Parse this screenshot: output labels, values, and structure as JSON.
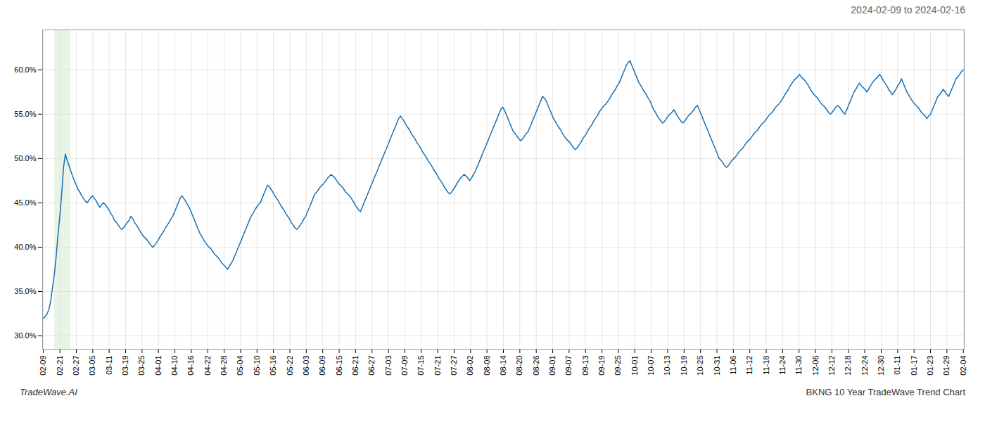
{
  "chart_data": {
    "type": "line",
    "title": "2024-02-09 to 2024-02-16",
    "annotations": [
      "TradeWave.AI",
      "BKNG 10 Year TradeWave Trend Chart"
    ],
    "color": "#1a6faf",
    "span": {
      "x": [
        6,
        15
      ],
      "color": "#d4e8d0"
    },
    "grid": true,
    "xlim": [
      -0.5,
      505.5
    ],
    "xticks": [
      {
        "value": 0,
        "label": "02-09"
      },
      {
        "value": 9.017857,
        "label": "02-21"
      },
      {
        "value": 18.035714,
        "label": "02-27"
      },
      {
        "value": 27.053571,
        "label": "03-05"
      },
      {
        "value": 36.071429,
        "label": "03-11"
      },
      {
        "value": 45.089286,
        "label": "03-19"
      },
      {
        "value": 54.107143,
        "label": "03-25"
      },
      {
        "value": 63.125,
        "label": "04-01"
      },
      {
        "value": 72.142857,
        "label": "04-10"
      },
      {
        "value": 81.160714,
        "label": "04-16"
      },
      {
        "value": 90.178571,
        "label": "04-22"
      },
      {
        "value": 99.196429,
        "label": "04-28"
      },
      {
        "value": 108.214286,
        "label": "05-04"
      },
      {
        "value": 117.232143,
        "label": "05-10"
      },
      {
        "value": 126.25,
        "label": "05-16"
      },
      {
        "value": 135.267857,
        "label": "05-22"
      },
      {
        "value": 144.285714,
        "label": "06-03"
      },
      {
        "value": 153.303571,
        "label": "06-09"
      },
      {
        "value": 162.321429,
        "label": "06-15"
      },
      {
        "value": 171.339286,
        "label": "06-21"
      },
      {
        "value": 180.357143,
        "label": "06-27"
      },
      {
        "value": 189.375,
        "label": "07-03"
      },
      {
        "value": 198.392857,
        "label": "07-09"
      },
      {
        "value": 207.410714,
        "label": "07-15"
      },
      {
        "value": 216.428571,
        "label": "07-21"
      },
      {
        "value": 225.446429,
        "label": "07-27"
      },
      {
        "value": 234.464286,
        "label": "08-02"
      },
      {
        "value": 243.482143,
        "label": "08-08"
      },
      {
        "value": 252.5,
        "label": "08-14"
      },
      {
        "value": 261.517857,
        "label": "08-20"
      },
      {
        "value": 270.535714,
        "label": "08-26"
      },
      {
        "value": 279.553571,
        "label": "09-01"
      },
      {
        "value": 288.571429,
        "label": "09-07"
      },
      {
        "value": 297.589286,
        "label": "09-13"
      },
      {
        "value": 306.607143,
        "label": "09-19"
      },
      {
        "value": 315.625,
        "label": "09-25"
      },
      {
        "value": 324.642857,
        "label": "10-01"
      },
      {
        "value": 333.660714,
        "label": "10-07"
      },
      {
        "value": 342.678571,
        "label": "10-13"
      },
      {
        "value": 351.696429,
        "label": "10-19"
      },
      {
        "value": 360.714286,
        "label": "10-25"
      },
      {
        "value": 369.732143,
        "label": "10-31"
      },
      {
        "value": 378.75,
        "label": "11-06"
      },
      {
        "value": 387.767857,
        "label": "11-12"
      },
      {
        "value": 396.785714,
        "label": "11-18"
      },
      {
        "value": 405.803571,
        "label": "11-24"
      },
      {
        "value": 414.821429,
        "label": "11-30"
      },
      {
        "value": 423.839286,
        "label": "12-06"
      },
      {
        "value": 432.857143,
        "label": "12-12"
      },
      {
        "value": 441.875,
        "label": "12-18"
      },
      {
        "value": 450.892857,
        "label": "12-24"
      },
      {
        "value": 459.910714,
        "label": "12-30"
      },
      {
        "value": 468.928571,
        "label": "01-11"
      },
      {
        "value": 477.946429,
        "label": "01-17"
      },
      {
        "value": 486.964286,
        "label": "01-23"
      },
      {
        "value": 495.982143,
        "label": "01-29"
      },
      {
        "value": 505,
        "label": "02-04"
      }
    ],
    "ylim": [
      0.285,
      0.645
    ],
    "yticks": [
      {
        "value": 0.3,
        "label": "30.0%"
      },
      {
        "value": 0.35,
        "label": "35.0%"
      },
      {
        "value": 0.4,
        "label": "40.0%"
      },
      {
        "value": 0.45,
        "label": "45.0%"
      },
      {
        "value": 0.5,
        "label": "50.0%"
      },
      {
        "value": 0.55,
        "label": "55.0%"
      },
      {
        "value": 0.6,
        "label": "60.0%"
      }
    ],
    "values": [
      0.32,
      0.322,
      0.325,
      0.33,
      0.34,
      0.355,
      0.37,
      0.39,
      0.415,
      0.435,
      0.46,
      0.49,
      0.505,
      0.498,
      0.492,
      0.486,
      0.48,
      0.475,
      0.47,
      0.465,
      0.462,
      0.458,
      0.455,
      0.452,
      0.45,
      0.453,
      0.456,
      0.458,
      0.455,
      0.452,
      0.448,
      0.445,
      0.448,
      0.45,
      0.448,
      0.445,
      0.442,
      0.438,
      0.435,
      0.43,
      0.428,
      0.425,
      0.422,
      0.42,
      0.422,
      0.425,
      0.428,
      0.43,
      0.435,
      0.432,
      0.428,
      0.425,
      0.422,
      0.418,
      0.415,
      0.412,
      0.41,
      0.408,
      0.405,
      0.402,
      0.4,
      0.402,
      0.405,
      0.408,
      0.412,
      0.415,
      0.418,
      0.422,
      0.425,
      0.428,
      0.432,
      0.435,
      0.44,
      0.445,
      0.45,
      0.455,
      0.458,
      0.455,
      0.452,
      0.448,
      0.445,
      0.44,
      0.435,
      0.43,
      0.425,
      0.42,
      0.415,
      0.412,
      0.408,
      0.405,
      0.402,
      0.4,
      0.398,
      0.395,
      0.392,
      0.39,
      0.388,
      0.385,
      0.382,
      0.38,
      0.378,
      0.375,
      0.378,
      0.382,
      0.385,
      0.39,
      0.395,
      0.4,
      0.405,
      0.41,
      0.415,
      0.42,
      0.425,
      0.43,
      0.435,
      0.438,
      0.442,
      0.445,
      0.448,
      0.45,
      0.455,
      0.46,
      0.465,
      0.47,
      0.468,
      0.465,
      0.462,
      0.458,
      0.455,
      0.452,
      0.448,
      0.445,
      0.442,
      0.438,
      0.435,
      0.432,
      0.428,
      0.425,
      0.422,
      0.42,
      0.422,
      0.425,
      0.428,
      0.432,
      0.435,
      0.44,
      0.445,
      0.45,
      0.455,
      0.46,
      0.462,
      0.465,
      0.468,
      0.47,
      0.472,
      0.475,
      0.478,
      0.48,
      0.482,
      0.48,
      0.478,
      0.475,
      0.472,
      0.47,
      0.468,
      0.465,
      0.462,
      0.46,
      0.458,
      0.455,
      0.452,
      0.448,
      0.445,
      0.442,
      0.44,
      0.445,
      0.45,
      0.455,
      0.46,
      0.465,
      0.47,
      0.475,
      0.48,
      0.485,
      0.49,
      0.495,
      0.5,
      0.505,
      0.51,
      0.515,
      0.52,
      0.525,
      0.53,
      0.535,
      0.54,
      0.545,
      0.548,
      0.545,
      0.542,
      0.538,
      0.535,
      0.532,
      0.528,
      0.525,
      0.522,
      0.518,
      0.515,
      0.512,
      0.508,
      0.505,
      0.502,
      0.498,
      0.495,
      0.492,
      0.488,
      0.485,
      0.482,
      0.478,
      0.475,
      0.472,
      0.468,
      0.465,
      0.462,
      0.46,
      0.462,
      0.465,
      0.468,
      0.472,
      0.475,
      0.478,
      0.48,
      0.482,
      0.48,
      0.478,
      0.475,
      0.478,
      0.482,
      0.485,
      0.49,
      0.495,
      0.5,
      0.505,
      0.51,
      0.515,
      0.52,
      0.525,
      0.53,
      0.535,
      0.54,
      0.545,
      0.55,
      0.555,
      0.558,
      0.555,
      0.55,
      0.545,
      0.54,
      0.535,
      0.53,
      0.528,
      0.525,
      0.522,
      0.52,
      0.522,
      0.525,
      0.528,
      0.53,
      0.535,
      0.54,
      0.545,
      0.55,
      0.555,
      0.56,
      0.565,
      0.57,
      0.568,
      0.565,
      0.56,
      0.555,
      0.55,
      0.545,
      0.542,
      0.538,
      0.535,
      0.532,
      0.528,
      0.525,
      0.522,
      0.52,
      0.518,
      0.515,
      0.512,
      0.51,
      0.512,
      0.515,
      0.518,
      0.522,
      0.525,
      0.528,
      0.532,
      0.535,
      0.538,
      0.542,
      0.545,
      0.548,
      0.552,
      0.555,
      0.558,
      0.56,
      0.562,
      0.565,
      0.568,
      0.572,
      0.575,
      0.578,
      0.582,
      0.585,
      0.59,
      0.595,
      0.6,
      0.605,
      0.608,
      0.61,
      0.605,
      0.6,
      0.595,
      0.59,
      0.585,
      0.582,
      0.578,
      0.575,
      0.572,
      0.568,
      0.565,
      0.56,
      0.555,
      0.552,
      0.548,
      0.545,
      0.542,
      0.54,
      0.542,
      0.545,
      0.548,
      0.55,
      0.552,
      0.555,
      0.552,
      0.548,
      0.545,
      0.542,
      0.54,
      0.542,
      0.545,
      0.548,
      0.55,
      0.552,
      0.555,
      0.558,
      0.56,
      0.555,
      0.55,
      0.545,
      0.54,
      0.535,
      0.53,
      0.525,
      0.52,
      0.515,
      0.51,
      0.505,
      0.5,
      0.498,
      0.495,
      0.492,
      0.49,
      0.492,
      0.495,
      0.498,
      0.5,
      0.502,
      0.505,
      0.508,
      0.51,
      0.512,
      0.515,
      0.518,
      0.52,
      0.522,
      0.525,
      0.528,
      0.53,
      0.532,
      0.535,
      0.538,
      0.54,
      0.542,
      0.545,
      0.548,
      0.55,
      0.552,
      0.555,
      0.558,
      0.56,
      0.562,
      0.565,
      0.568,
      0.572,
      0.575,
      0.578,
      0.582,
      0.585,
      0.588,
      0.59,
      0.592,
      0.595,
      0.592,
      0.59,
      0.588,
      0.585,
      0.582,
      0.578,
      0.575,
      0.572,
      0.57,
      0.568,
      0.565,
      0.562,
      0.56,
      0.558,
      0.555,
      0.552,
      0.55,
      0.552,
      0.555,
      0.558,
      0.56,
      0.558,
      0.555,
      0.552,
      0.55,
      0.555,
      0.56,
      0.565,
      0.57,
      0.575,
      0.578,
      0.582,
      0.585,
      0.582,
      0.58,
      0.578,
      0.575,
      0.578,
      0.582,
      0.585,
      0.588,
      0.59,
      0.592,
      0.595,
      0.592,
      0.588,
      0.585,
      0.582,
      0.578,
      0.575,
      0.572,
      0.575,
      0.578,
      0.582,
      0.585,
      0.59,
      0.585,
      0.58,
      0.575,
      0.572,
      0.568,
      0.565,
      0.562,
      0.56,
      0.558,
      0.555,
      0.552,
      0.55,
      0.548,
      0.545,
      0.548,
      0.55,
      0.555,
      0.56,
      0.565,
      0.57,
      0.572,
      0.575,
      0.578,
      0.575,
      0.572,
      0.57,
      0.575,
      0.58,
      0.585,
      0.59,
      0.592,
      0.595,
      0.598,
      0.6
    ]
  }
}
